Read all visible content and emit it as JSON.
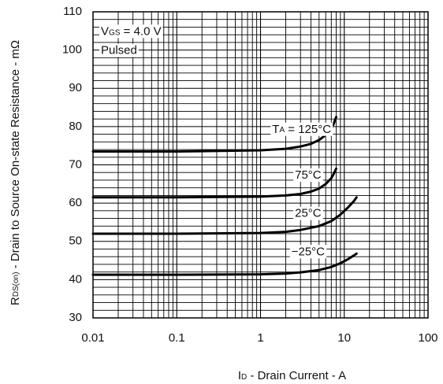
{
  "chart_data": {
    "type": "line",
    "xscale": "log",
    "xlim": [
      0.01,
      100
    ],
    "ylim": [
      30,
      110
    ],
    "xticks": [
      "0.01",
      "0.1",
      "1",
      "10",
      "100"
    ],
    "yticks": [
      "30",
      "40",
      "50",
      "60",
      "70",
      "80",
      "90",
      "100",
      "110"
    ],
    "grid": true,
    "xlabel": {
      "main": "I",
      "sub": "D",
      "rest": " - Drain Current - A"
    },
    "ylabel": {
      "main": "R",
      "sub": "DS(on)",
      "rest": " - Drain to Source On-state Resistance - mΩ"
    },
    "conditions": {
      "vgs": {
        "main": "V",
        "sub": "GS",
        "rest": " = 4.0 V"
      },
      "pulsed": "Pulsed"
    },
    "series": [
      {
        "name": "TA = 125°C",
        "label": {
          "main": "T",
          "sub": "A",
          "rest": " = 125°C"
        },
        "x": [
          0.01,
          0.1,
          1,
          2,
          3,
          4,
          5,
          6,
          7,
          7.5,
          8
        ],
        "y": [
          73.5,
          73.5,
          73.8,
          74.2,
          74.8,
          75.5,
          76.5,
          77.8,
          79.5,
          80.8,
          82.5
        ]
      },
      {
        "name": "75°C",
        "label": {
          "main": "75°C"
        },
        "x": [
          0.01,
          0.1,
          1,
          2,
          3,
          4,
          5,
          6,
          7,
          7.5,
          8
        ],
        "y": [
          61.5,
          61.5,
          61.7,
          62.0,
          62.4,
          63.0,
          63.8,
          65.0,
          66.5,
          67.7,
          69.0
        ]
      },
      {
        "name": "25°C",
        "label": {
          "main": "25°C"
        },
        "x": [
          0.01,
          0.1,
          1,
          2,
          3,
          5,
          7,
          9,
          11,
          13,
          14
        ],
        "y": [
          52.0,
          52.0,
          52.2,
          52.5,
          53.0,
          54.0,
          55.3,
          57.0,
          58.8,
          60.5,
          61.5
        ]
      },
      {
        "name": "-25°C",
        "label": {
          "main": "−25°C"
        },
        "x": [
          0.01,
          0.1,
          1,
          2,
          3,
          5,
          7,
          9,
          11,
          13,
          14
        ],
        "y": [
          41.3,
          41.3,
          41.4,
          41.6,
          41.9,
          42.5,
          43.3,
          44.3,
          45.3,
          46.3,
          46.8
        ]
      }
    ]
  }
}
